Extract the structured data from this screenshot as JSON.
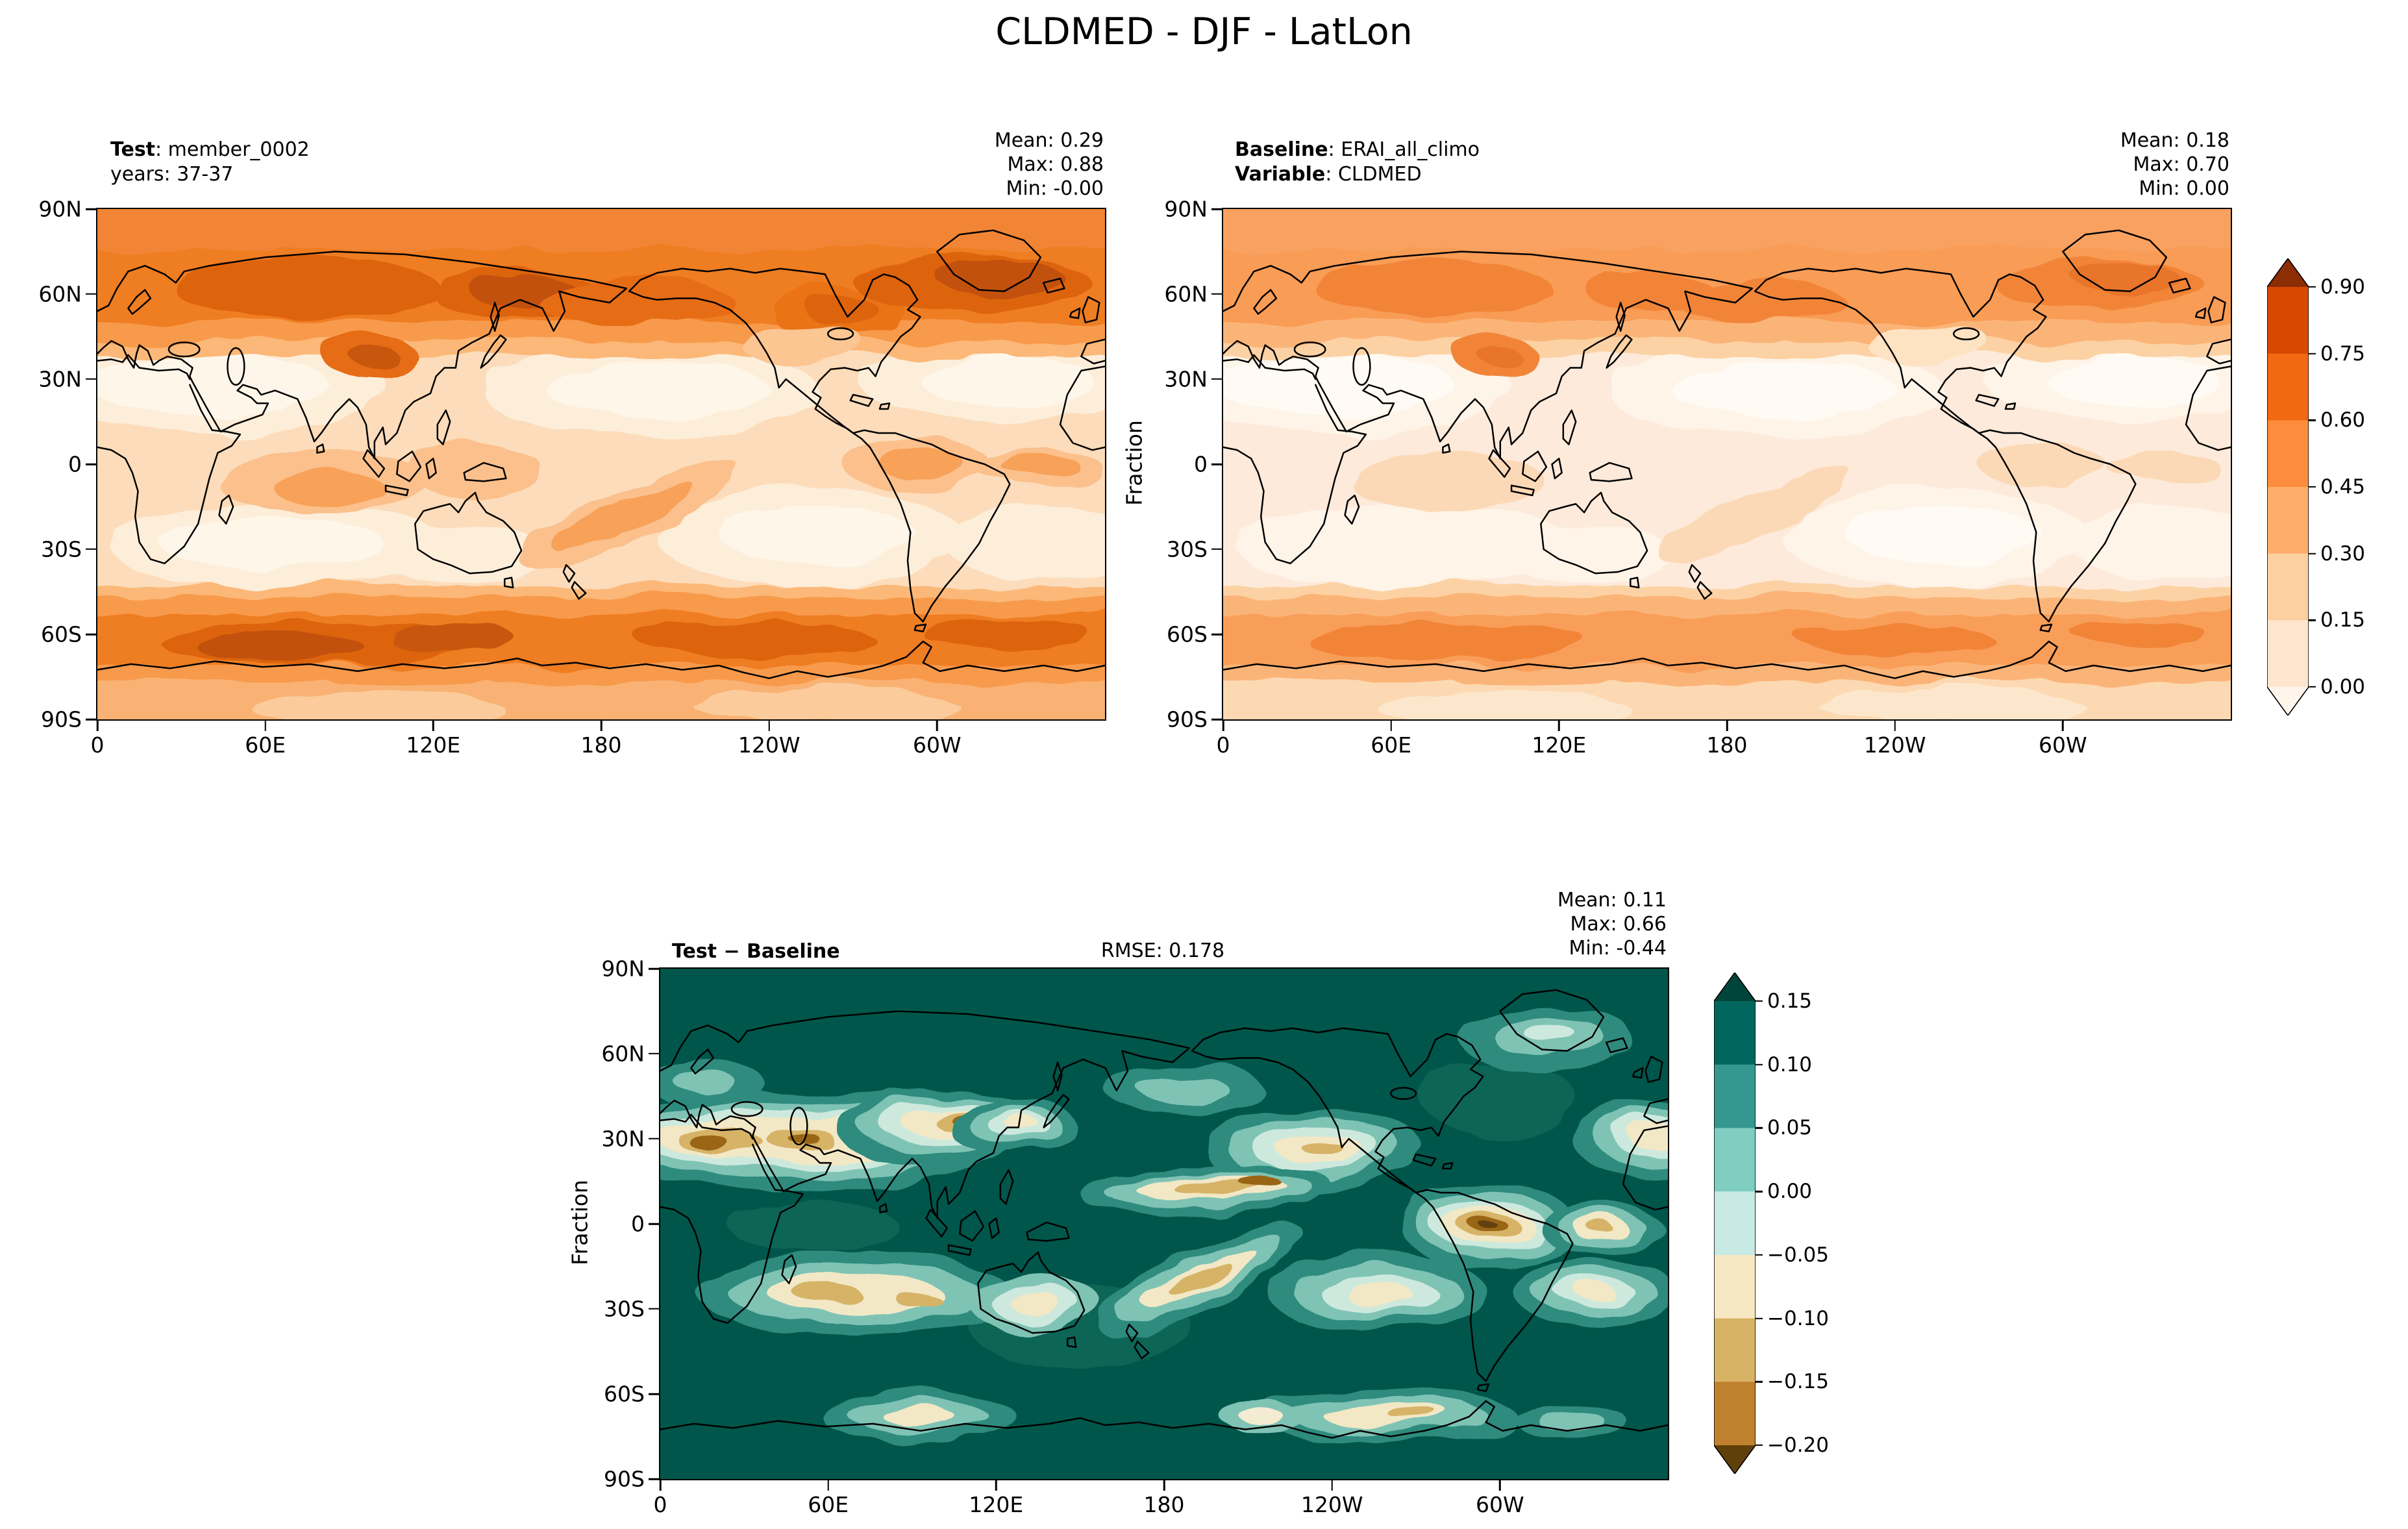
{
  "figure": {
    "title": "CLDMED - DJF - LatLon"
  },
  "labels": {
    "ylabel": "Fraction"
  },
  "panels": {
    "test": {
      "key": "Test",
      "value": ": member_0002",
      "years": "years: 37-37",
      "stats": {
        "mean": "Mean:  0.29",
        "max": "Max:  0.88",
        "min": "Min: -0.00"
      }
    },
    "baseline": {
      "key1": "Baseline",
      "value1": ": ERAI_all_climo",
      "key2": "Variable",
      "value2": ": CLDMED",
      "stats": {
        "mean": "Mean:  0.18",
        "max": "Max:  0.70",
        "min": "Min:  0.00"
      }
    },
    "diff": {
      "title": "Test − Baseline",
      "rmse": "RMSE: 0.178",
      "stats": {
        "mean": "Mean:  0.11",
        "max": "Max:  0.66",
        "min": "Min: -0.44"
      }
    }
  },
  "axes": {
    "lat_ticks": [
      "90N",
      "60N",
      "30N",
      "0",
      "30S",
      "60S",
      "90S"
    ],
    "lon_ticks": [
      "0",
      "60E",
      "120E",
      "180",
      "120W",
      "60W"
    ]
  },
  "colorbars": {
    "fraction": {
      "ticks": [
        "0.90",
        "0.75",
        "0.60",
        "0.45",
        "0.30",
        "0.15",
        "0.00"
      ],
      "colors": [
        "#8c2d04",
        "#d94801",
        "#f16913",
        "#fd8d3c",
        "#fdae6b",
        "#fdd0a2",
        "#fee6ce",
        "#fff5eb"
      ]
    },
    "difference": {
      "ticks": [
        "0.15",
        "0.10",
        "0.05",
        "0.00",
        "−0.05",
        "−0.10",
        "−0.15",
        "−0.20"
      ],
      "colors": [
        "#00453b",
        "#01665e",
        "#35978f",
        "#80cdc1",
        "#c7eae5",
        "#f6e8c3",
        "#d8b365",
        "#bf812d",
        "#60400a"
      ]
    }
  },
  "chart_data": [
    {
      "type": "heatmap",
      "subtype": "filled-contour-latlon-map",
      "panel": "test",
      "title": "Test: member_0002 (years: 37-37)",
      "units": "Fraction",
      "colormap": "Oranges",
      "x_ticks": [
        "0",
        "60E",
        "120E",
        "180",
        "120W",
        "60W"
      ],
      "y_ticks": [
        "90N",
        "60N",
        "30N",
        "0",
        "30S",
        "60S",
        "90S"
      ],
      "x_range_deg": [
        0,
        360
      ],
      "y_range_deg": [
        -90,
        90
      ],
      "levels": [
        0.0,
        0.15,
        0.3,
        0.45,
        0.6,
        0.75,
        0.9
      ],
      "stats": {
        "mean": 0.29,
        "max": 0.88,
        "min": -0.0
      }
    },
    {
      "type": "heatmap",
      "subtype": "filled-contour-latlon-map",
      "panel": "baseline",
      "title": "Baseline: ERAI_all_climo, Variable: CLDMED",
      "units": "Fraction",
      "colormap": "Oranges",
      "x_ticks": [
        "0",
        "60E",
        "120E",
        "180",
        "120W",
        "60W"
      ],
      "y_ticks": [
        "90N",
        "60N",
        "30N",
        "0",
        "30S",
        "60S",
        "90S"
      ],
      "x_range_deg": [
        0,
        360
      ],
      "y_range_deg": [
        -90,
        90
      ],
      "levels": [
        0.0,
        0.15,
        0.3,
        0.45,
        0.6,
        0.75,
        0.9
      ],
      "stats": {
        "mean": 0.18,
        "max": 0.7,
        "min": 0.0
      }
    },
    {
      "type": "heatmap",
      "subtype": "filled-contour-latlon-map",
      "panel": "difference",
      "title": "Test − Baseline",
      "units": "Fraction",
      "colormap": "BrBG",
      "rmse": 0.178,
      "x_ticks": [
        "0",
        "60E",
        "120E",
        "180",
        "120W",
        "60W"
      ],
      "y_ticks": [
        "90N",
        "60N",
        "30N",
        "0",
        "30S",
        "60S",
        "90S"
      ],
      "x_range_deg": [
        0,
        360
      ],
      "y_range_deg": [
        -90,
        90
      ],
      "levels": [
        -0.2,
        -0.15,
        -0.1,
        -0.05,
        0.0,
        0.05,
        0.1,
        0.15
      ],
      "stats": {
        "mean": 0.11,
        "max": 0.66,
        "min": -0.44
      }
    }
  ]
}
